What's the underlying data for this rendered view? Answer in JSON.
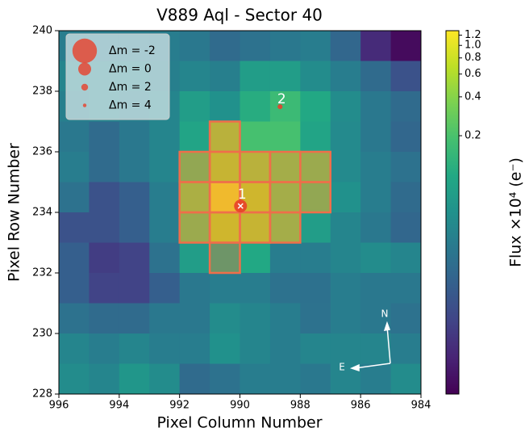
{
  "chart_data": {
    "type": "heatmap",
    "title": "V889 Aql - Sector 40",
    "x_label": "Pixel Column Number",
    "y_label": "Pixel Row Number",
    "colorbar_label": "Flux ×10⁴ (e⁻)",
    "colormap": "viridis",
    "color_scale": "log",
    "xlim": [
      996,
      984
    ],
    "ylim": [
      228,
      240
    ],
    "xticks": [
      996,
      994,
      992,
      990,
      988,
      986,
      984
    ],
    "yticks": [
      228,
      230,
      232,
      234,
      236,
      238,
      240
    ],
    "clim": [
      0.002,
      1.3
    ],
    "cticks": [
      0.2,
      0.4,
      0.6,
      0.8,
      {
        "value": 1.0,
        "label": "1.0"
      },
      1.2
    ],
    "values": [
      [
        0.03,
        0.03,
        0.03,
        0.03,
        0.027,
        0.019,
        0.023,
        0.027,
        0.03,
        0.017,
        0.0044,
        0.0024
      ],
      [
        0.037,
        0.037,
        0.037,
        0.032,
        0.037,
        0.032,
        0.071,
        0.071,
        0.045,
        0.03,
        0.019,
        0.0101
      ],
      [
        0.032,
        0.037,
        0.032,
        0.037,
        0.071,
        0.051,
        0.11,
        0.16,
        0.098,
        0.045,
        0.027,
        0.019
      ],
      [
        0.027,
        0.019,
        0.027,
        0.037,
        0.086,
        0.49,
        0.19,
        0.19,
        0.086,
        0.042,
        0.027,
        0.017
      ],
      [
        0.03,
        0.019,
        0.027,
        0.037,
        0.26,
        0.6,
        0.49,
        0.36,
        0.31,
        0.042,
        0.03,
        0.023
      ],
      [
        0.023,
        0.0101,
        0.014,
        0.03,
        0.4,
        1.14,
        0.68,
        0.36,
        0.26,
        0.051,
        0.03,
        0.019
      ],
      [
        0.0101,
        0.0101,
        0.014,
        0.03,
        0.31,
        0.68,
        0.6,
        0.36,
        0.071,
        0.037,
        0.027,
        0.017
      ],
      [
        0.014,
        0.0064,
        0.0073,
        0.023,
        0.071,
        0.11,
        0.098,
        0.03,
        0.03,
        0.037,
        0.045,
        0.037
      ],
      [
        0.014,
        0.0073,
        0.0073,
        0.014,
        0.027,
        0.03,
        0.03,
        0.023,
        0.022,
        0.03,
        0.027,
        0.027
      ],
      [
        0.023,
        0.019,
        0.019,
        0.027,
        0.027,
        0.045,
        0.037,
        0.03,
        0.023,
        0.03,
        0.027,
        0.023
      ],
      [
        0.037,
        0.03,
        0.037,
        0.03,
        0.03,
        0.051,
        0.037,
        0.03,
        0.037,
        0.037,
        0.037,
        0.03
      ],
      [
        0.045,
        0.037,
        0.058,
        0.045,
        0.019,
        0.023,
        0.03,
        0.03,
        0.027,
        0.037,
        0.03,
        0.045
      ]
    ],
    "aperture": [
      {
        "x": 991,
        "y": 236
      },
      {
        "x": 992,
        "y": 235
      },
      {
        "x": 991,
        "y": 235
      },
      {
        "x": 990,
        "y": 235
      },
      {
        "x": 989,
        "y": 235
      },
      {
        "x": 988,
        "y": 235
      },
      {
        "x": 992,
        "y": 234
      },
      {
        "x": 991,
        "y": 234
      },
      {
        "x": 990,
        "y": 234
      },
      {
        "x": 989,
        "y": 234
      },
      {
        "x": 988,
        "y": 234
      },
      {
        "x": 992,
        "y": 233
      },
      {
        "x": 991,
        "y": 233
      },
      {
        "x": 990,
        "y": 233
      },
      {
        "x": 989,
        "y": 233
      },
      {
        "x": 991,
        "y": 232
      }
    ],
    "sources": [
      {
        "label": "1",
        "x": 989.98,
        "y": 234.21,
        "dm": 0
      },
      {
        "label": "2",
        "x": 988.67,
        "y": 237.49,
        "dm": 3
      }
    ],
    "legend": [
      {
        "label": "Δm =  -2",
        "dm": -2
      },
      {
        "label": "Δm =  0",
        "dm": 0
      },
      {
        "label": "Δm =  2",
        "dm": 2
      },
      {
        "label": "Δm =  4",
        "dm": 4
      }
    ],
    "compass": {
      "north": "N",
      "east": "E"
    }
  }
}
